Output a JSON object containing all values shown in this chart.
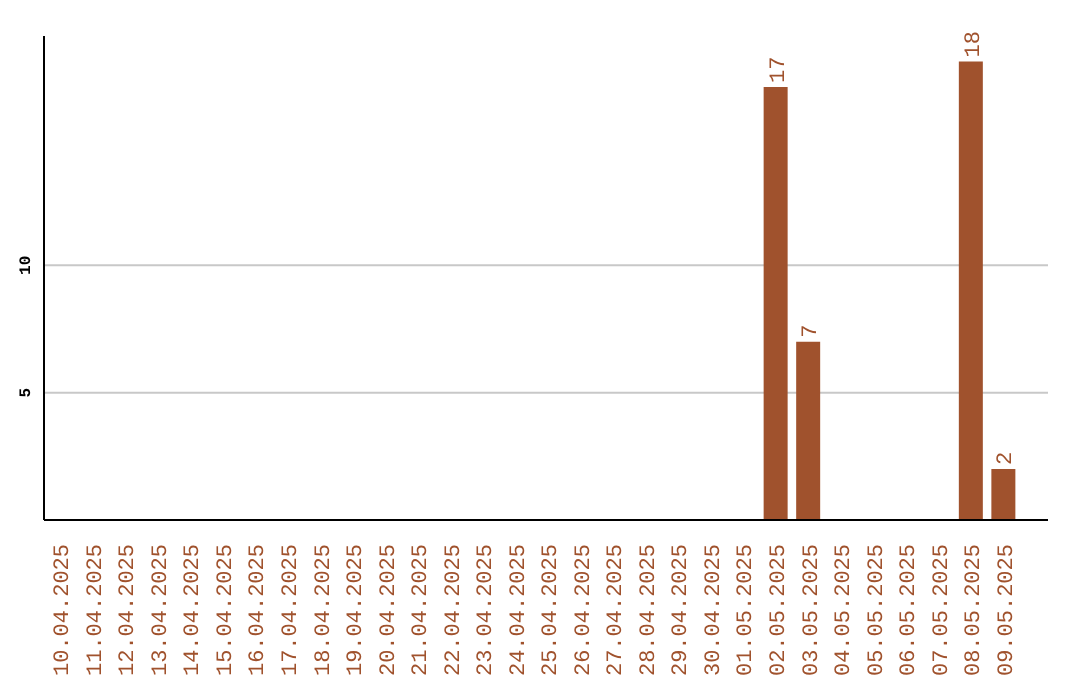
{
  "chart_data": {
    "type": "bar",
    "categories": [
      "10.04.2025",
      "11.04.2025",
      "12.04.2025",
      "13.04.2025",
      "14.04.2025",
      "15.04.2025",
      "16.04.2025",
      "17.04.2025",
      "18.04.2025",
      "19.04.2025",
      "20.04.2025",
      "21.04.2025",
      "22.04.2025",
      "23.04.2025",
      "24.04.2025",
      "25.04.2025",
      "26.04.2025",
      "27.04.2025",
      "28.04.2025",
      "29.04.2025",
      "30.04.2025",
      "01.05.2025",
      "02.05.2025",
      "03.05.2025",
      "04.05.2025",
      "05.05.2025",
      "06.05.2025",
      "07.05.2025",
      "08.05.2025",
      "09.05.2025"
    ],
    "values": [
      null,
      null,
      null,
      null,
      null,
      null,
      null,
      null,
      null,
      null,
      null,
      null,
      null,
      null,
      null,
      null,
      null,
      null,
      null,
      null,
      null,
      null,
      17,
      7,
      null,
      null,
      null,
      null,
      18,
      2
    ],
    "color": "#a0522d",
    "ylim": [
      0,
      19
    ],
    "yticks": [
      5,
      10
    ],
    "grid": "y",
    "data_labels": true
  }
}
